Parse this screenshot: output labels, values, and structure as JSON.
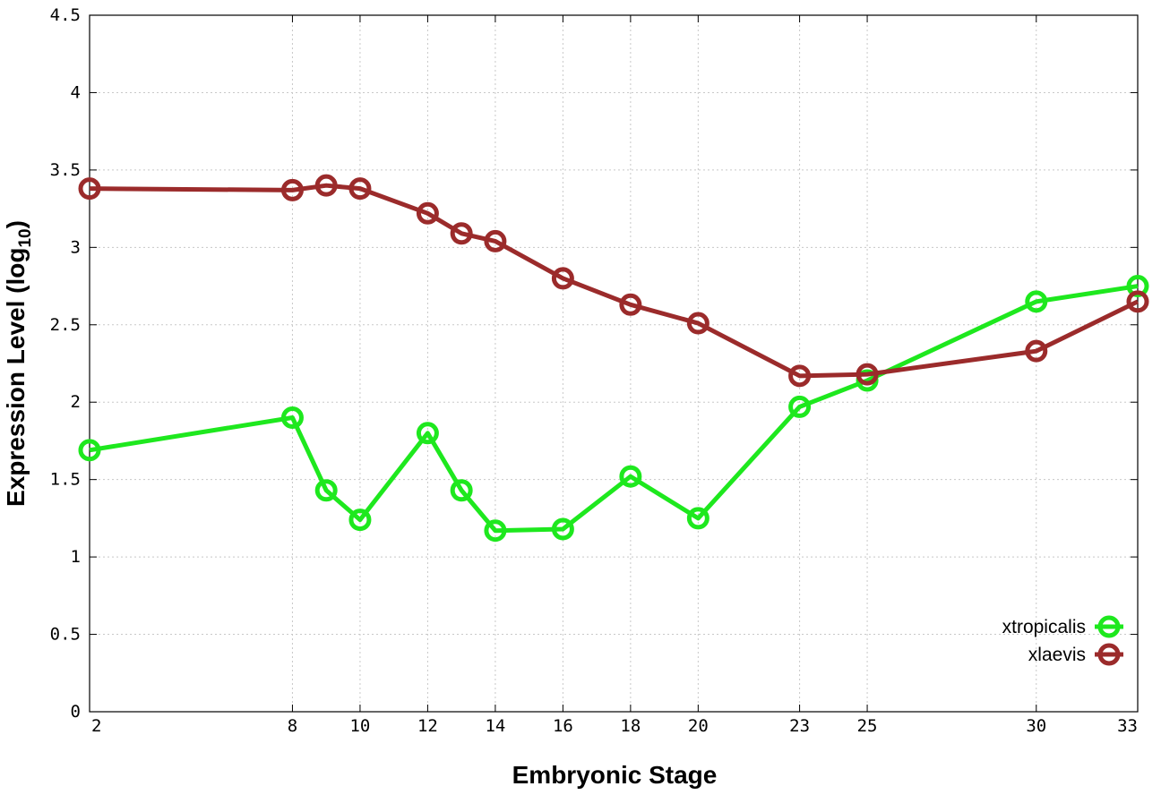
{
  "chart_data": {
    "type": "line",
    "xlabel": "Embryonic Stage",
    "ylabel_main": "Expression Level (log",
    "ylabel_sub": "10",
    "ylabel_close": ")",
    "categories": [
      "2",
      "8",
      "9",
      "10",
      "12",
      "13",
      "14",
      "16",
      "18",
      "20",
      "23",
      "25",
      "30",
      "33"
    ],
    "x_values": [
      2,
      8,
      9,
      10,
      12,
      13,
      14,
      16,
      18,
      20,
      23,
      25,
      30,
      33
    ],
    "x_tick_labels": [
      "2",
      "8",
      "10",
      "12",
      "14",
      "16",
      "18",
      "20",
      "23",
      "25",
      "30",
      "33"
    ],
    "x_ticks": [
      2,
      8,
      10,
      12,
      14,
      16,
      18,
      20,
      23,
      25,
      30,
      33
    ],
    "xlim": [
      2,
      33
    ],
    "ylim": [
      0,
      4.5
    ],
    "y_ticks": [
      0,
      0.5,
      1,
      1.5,
      2,
      2.5,
      3,
      3.5,
      4,
      4.5
    ],
    "y_tick_labels": [
      "0",
      "0.5",
      "1",
      "1.5",
      "2",
      "2.5",
      "3",
      "3.5",
      "4",
      "4.5"
    ],
    "grid": true,
    "legend_position": "bottom-right",
    "series": [
      {
        "name": "xtropicalis",
        "color": "#1ee81e",
        "values": [
          1.69,
          1.9,
          1.43,
          1.24,
          1.8,
          1.43,
          1.17,
          1.18,
          1.52,
          1.25,
          1.97,
          2.14,
          2.65,
          2.75
        ]
      },
      {
        "name": "xlaevis",
        "color": "#9b2b2b",
        "values": [
          3.38,
          3.37,
          3.4,
          3.38,
          3.22,
          3.09,
          3.04,
          2.8,
          2.63,
          2.51,
          2.17,
          2.18,
          2.33,
          2.65
        ]
      }
    ]
  }
}
